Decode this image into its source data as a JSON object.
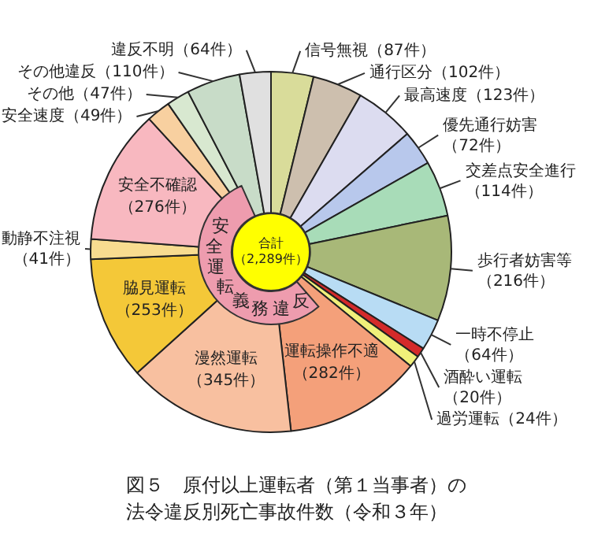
{
  "chart_data": {
    "type": "donut",
    "title": "図５　原付以上運転者（第１当事者）の法令違反別死亡事故件数（令和３年）",
    "categories": [
      "信号無視",
      "通行区分",
      "最高速度",
      "優先通行妨害",
      "交差点安全進行",
      "歩行者妨害等",
      "一時不停止",
      "酒酔い運転",
      "過労運転",
      "運転操作不適",
      "漫然運転",
      "脇見運転",
      "動静不注視",
      "安全不確認",
      "安全速度",
      "その他",
      "その他違反",
      "違反不明"
    ],
    "values": [
      87,
      102,
      123,
      72,
      114,
      216,
      64,
      20,
      24,
      282,
      345,
      253,
      41,
      276,
      49,
      47,
      110,
      64
    ],
    "value_labels": [
      "（87件）",
      "（102件）",
      "（123件）",
      "（72件）",
      "（114件）",
      "（216件）",
      "（64件）",
      "（20件）",
      "（24件）",
      "（282件）",
      "（345件）",
      "（253件）",
      "（41件）",
      "（276件）",
      "（49件）",
      "（47件）",
      "（110件）",
      "（64件）"
    ],
    "colors": [
      "#d9dc9a",
      "#cdbfae",
      "#dcdcf0",
      "#b8c8ec",
      "#a8dcb8",
      "#a8b878",
      "#b8dcf4",
      "#d42a2a",
      "#f0f07a",
      "#f4a07a",
      "#f8c0a0",
      "#f4c838",
      "#f8dc90",
      "#f8b8c0",
      "#f8d0a0",
      "#d8e8d0",
      "#c8dcc8",
      "#e0e0e0"
    ],
    "annotations": [
      "安全運転義務違反",
      "合計（2,289件）"
    ],
    "legend": false
  }
}
